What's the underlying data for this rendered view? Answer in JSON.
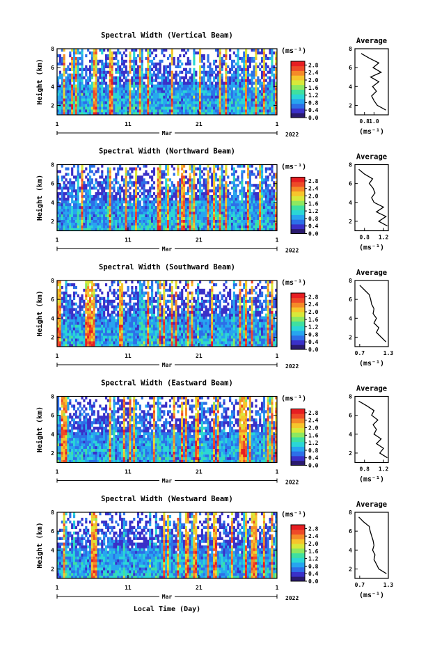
{
  "figure": {
    "x_label": "Local Time (Day)",
    "month_label": "Mar",
    "year_label": "2022",
    "colorbar_unit": "(ms⁻¹)",
    "avg_title": "Average",
    "avg_unit": "(ms⁻¹)",
    "height_label": "Height (km)",
    "time_ticks": [
      "1",
      "11",
      "21",
      "1"
    ],
    "height_ticks": [
      "2",
      "4",
      "6",
      "8"
    ]
  },
  "chart_data": [
    {
      "type": "heatmap",
      "title": "Spectral Width (Vertical Beam)",
      "ylabel": "Height (km)",
      "xlabel": "Mar",
      "ylim": [
        1,
        8
      ],
      "colorbar": {
        "ticks": [
          "0.0",
          "0.4",
          "0.8",
          "1.2",
          "1.6",
          "2.0",
          "2.4",
          "2.8"
        ],
        "range": [
          0,
          3.0
        ]
      },
      "profile": {
        "xlim": [
          0.6,
          1.3
        ],
        "xticks": [
          "0.8",
          "1.0"
        ],
        "heights": [
          1.5,
          2,
          2.5,
          3,
          3.5,
          4,
          4.5,
          5,
          5.5,
          6,
          6.5,
          7,
          7.5
        ],
        "values": [
          1.25,
          1.07,
          1.0,
          0.95,
          1.05,
          0.97,
          1.1,
          0.93,
          1.15,
          0.98,
          1.1,
          0.9,
          0.73
        ]
      }
    },
    {
      "type": "heatmap",
      "title": "Spectral Width (Northward Beam)",
      "ylabel": "Height (km)",
      "xlabel": "Mar",
      "ylim": [
        1,
        8
      ],
      "colorbar": {
        "ticks": [
          "0.0",
          "0.4",
          "0.8",
          "1.2",
          "1.6",
          "2.0",
          "2.4",
          "2.8"
        ],
        "range": [
          0,
          3.0
        ]
      },
      "profile": {
        "xlim": [
          0.6,
          1.3
        ],
        "xticks": [
          "0.8",
          "1.2"
        ],
        "heights": [
          1.5,
          2,
          2.5,
          3,
          3.5,
          4,
          4.5,
          5,
          5.5,
          6,
          6.5,
          7,
          7.5
        ],
        "values": [
          1.28,
          1.1,
          1.25,
          1.05,
          1.2,
          1.0,
          0.95,
          1.02,
          0.98,
          0.9,
          0.97,
          0.8,
          0.68
        ]
      }
    },
    {
      "type": "heatmap",
      "title": "Spectral Width (Southward Beam)",
      "ylabel": "Height (km)",
      "xlabel": "Mar",
      "ylim": [
        1,
        8
      ],
      "colorbar": {
        "ticks": [
          "0.0",
          "0.4",
          "0.8",
          "1.2",
          "1.6",
          "2.0",
          "2.4",
          "2.8"
        ],
        "range": [
          0,
          3.0
        ]
      },
      "profile": {
        "xlim": [
          0.6,
          1.3
        ],
        "xticks": [
          "0.7",
          "1.3"
        ],
        "heights": [
          1.5,
          2,
          2.5,
          3,
          3.5,
          4,
          4.5,
          5,
          5.5,
          6,
          6.5,
          7,
          7.5
        ],
        "values": [
          1.25,
          1.15,
          1.05,
          1.1,
          1.0,
          1.05,
          0.98,
          1.0,
          0.95,
          0.93,
          0.9,
          0.8,
          0.7
        ]
      }
    },
    {
      "type": "heatmap",
      "title": "Spectral Width (Eastward Beam)",
      "ylabel": "Height (km)",
      "xlabel": "Mar",
      "ylim": [
        1,
        8
      ],
      "colorbar": {
        "ticks": [
          "0.0",
          "0.4",
          "0.8",
          "1.2",
          "1.6",
          "2.0",
          "2.4",
          "2.8"
        ],
        "range": [
          0,
          3.0
        ]
      },
      "profile": {
        "xlim": [
          0.6,
          1.3
        ],
        "xticks": [
          "0.8",
          "1.2"
        ],
        "heights": [
          1.5,
          2,
          2.5,
          3,
          3.5,
          4,
          4.5,
          5,
          5.5,
          6,
          6.5,
          7,
          7.5
        ],
        "values": [
          1.28,
          1.12,
          1.2,
          1.05,
          1.15,
          1.0,
          1.05,
          0.98,
          1.08,
          0.95,
          1.0,
          0.85,
          0.68
        ]
      }
    },
    {
      "type": "heatmap",
      "title": "Spectral Width (Westward Beam)",
      "ylabel": "Height (km)",
      "xlabel": "Mar",
      "ylim": [
        1,
        8
      ],
      "colorbar": {
        "ticks": [
          "0.0",
          "0.4",
          "0.8",
          "1.2",
          "1.6",
          "2.0",
          "2.4",
          "2.8"
        ],
        "range": [
          0,
          3.0
        ]
      },
      "profile": {
        "xlim": [
          0.6,
          1.3
        ],
        "xticks": [
          "0.7",
          "1.3"
        ],
        "heights": [
          1.5,
          2,
          2.5,
          3,
          3.5,
          4,
          4.5,
          5,
          5.5,
          6,
          6.5,
          7,
          7.5
        ],
        "values": [
          1.26,
          1.1,
          1.05,
          1.0,
          1.02,
          0.97,
          1.0,
          0.98,
          0.95,
          0.92,
          0.9,
          0.78,
          0.68
        ]
      }
    }
  ]
}
